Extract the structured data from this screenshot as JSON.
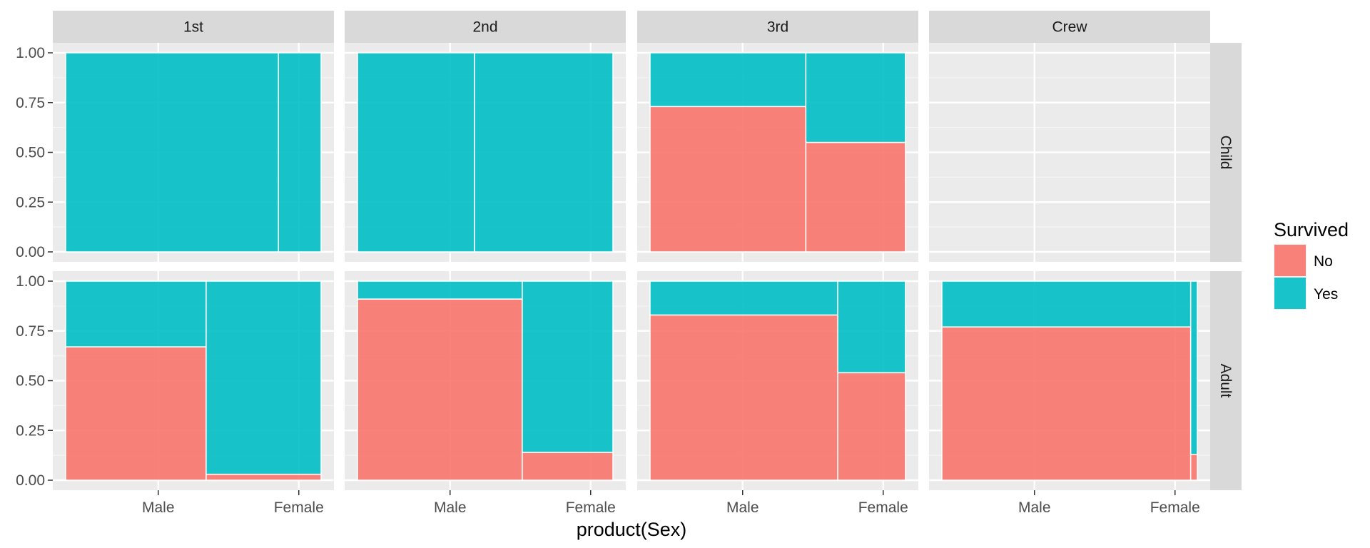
{
  "chart_data": {
    "type": "mosaic",
    "xlabel": "product(Sex)",
    "x_tick_labels": [
      "Male",
      "Female"
    ],
    "y_ticks": [
      0,
      0.25,
      0.5,
      0.75,
      1
    ],
    "y_tick_labels": [
      "0.00",
      "0.25",
      "0.50",
      "0.75",
      "1.00"
    ],
    "ylim": [
      0,
      1
    ],
    "col_facets": [
      "1st",
      "2nd",
      "3rd",
      "Crew"
    ],
    "row_facets": [
      "Child",
      "Adult"
    ],
    "legend": {
      "title": "Survived",
      "position": "right",
      "entries": [
        {
          "label": "No",
          "color": "#F8766D"
        },
        {
          "label": "Yes",
          "color": "#00BFC4"
        }
      ]
    },
    "colors": {
      "No": "#F8766D",
      "Yes": "#00BFC4"
    },
    "panels": [
      {
        "col": "1st",
        "row": "Child",
        "bars": [
          {
            "sex": "Male",
            "width_frac": 0.833,
            "no": 0.0,
            "yes": 1.0
          },
          {
            "sex": "Female",
            "width_frac": 0.167,
            "no": 0.0,
            "yes": 1.0
          }
        ]
      },
      {
        "col": "2nd",
        "row": "Child",
        "bars": [
          {
            "sex": "Male",
            "width_frac": 0.458,
            "no": 0.0,
            "yes": 1.0
          },
          {
            "sex": "Female",
            "width_frac": 0.542,
            "no": 0.0,
            "yes": 1.0
          }
        ]
      },
      {
        "col": "3rd",
        "row": "Child",
        "bars": [
          {
            "sex": "Male",
            "width_frac": 0.61,
            "no": 0.73,
            "yes": 0.27
          },
          {
            "sex": "Female",
            "width_frac": 0.39,
            "no": 0.55,
            "yes": 0.45
          }
        ]
      },
      {
        "col": "Crew",
        "row": "Child",
        "bars": []
      },
      {
        "col": "1st",
        "row": "Adult",
        "bars": [
          {
            "sex": "Male",
            "width_frac": 0.55,
            "no": 0.67,
            "yes": 0.33
          },
          {
            "sex": "Female",
            "width_frac": 0.45,
            "no": 0.03,
            "yes": 0.97
          }
        ]
      },
      {
        "col": "2nd",
        "row": "Adult",
        "bars": [
          {
            "sex": "Male",
            "width_frac": 0.645,
            "no": 0.91,
            "yes": 0.09
          },
          {
            "sex": "Female",
            "width_frac": 0.355,
            "no": 0.14,
            "yes": 0.86
          }
        ]
      },
      {
        "col": "3rd",
        "row": "Adult",
        "bars": [
          {
            "sex": "Male",
            "width_frac": 0.735,
            "no": 0.83,
            "yes": 0.17
          },
          {
            "sex": "Female",
            "width_frac": 0.265,
            "no": 0.54,
            "yes": 0.46
          }
        ]
      },
      {
        "col": "Crew",
        "row": "Adult",
        "bars": [
          {
            "sex": "Male",
            "width_frac": 0.974,
            "no": 0.77,
            "yes": 0.23
          },
          {
            "sex": "Female",
            "width_frac": 0.026,
            "no": 0.13,
            "yes": 0.87
          }
        ]
      }
    ]
  }
}
